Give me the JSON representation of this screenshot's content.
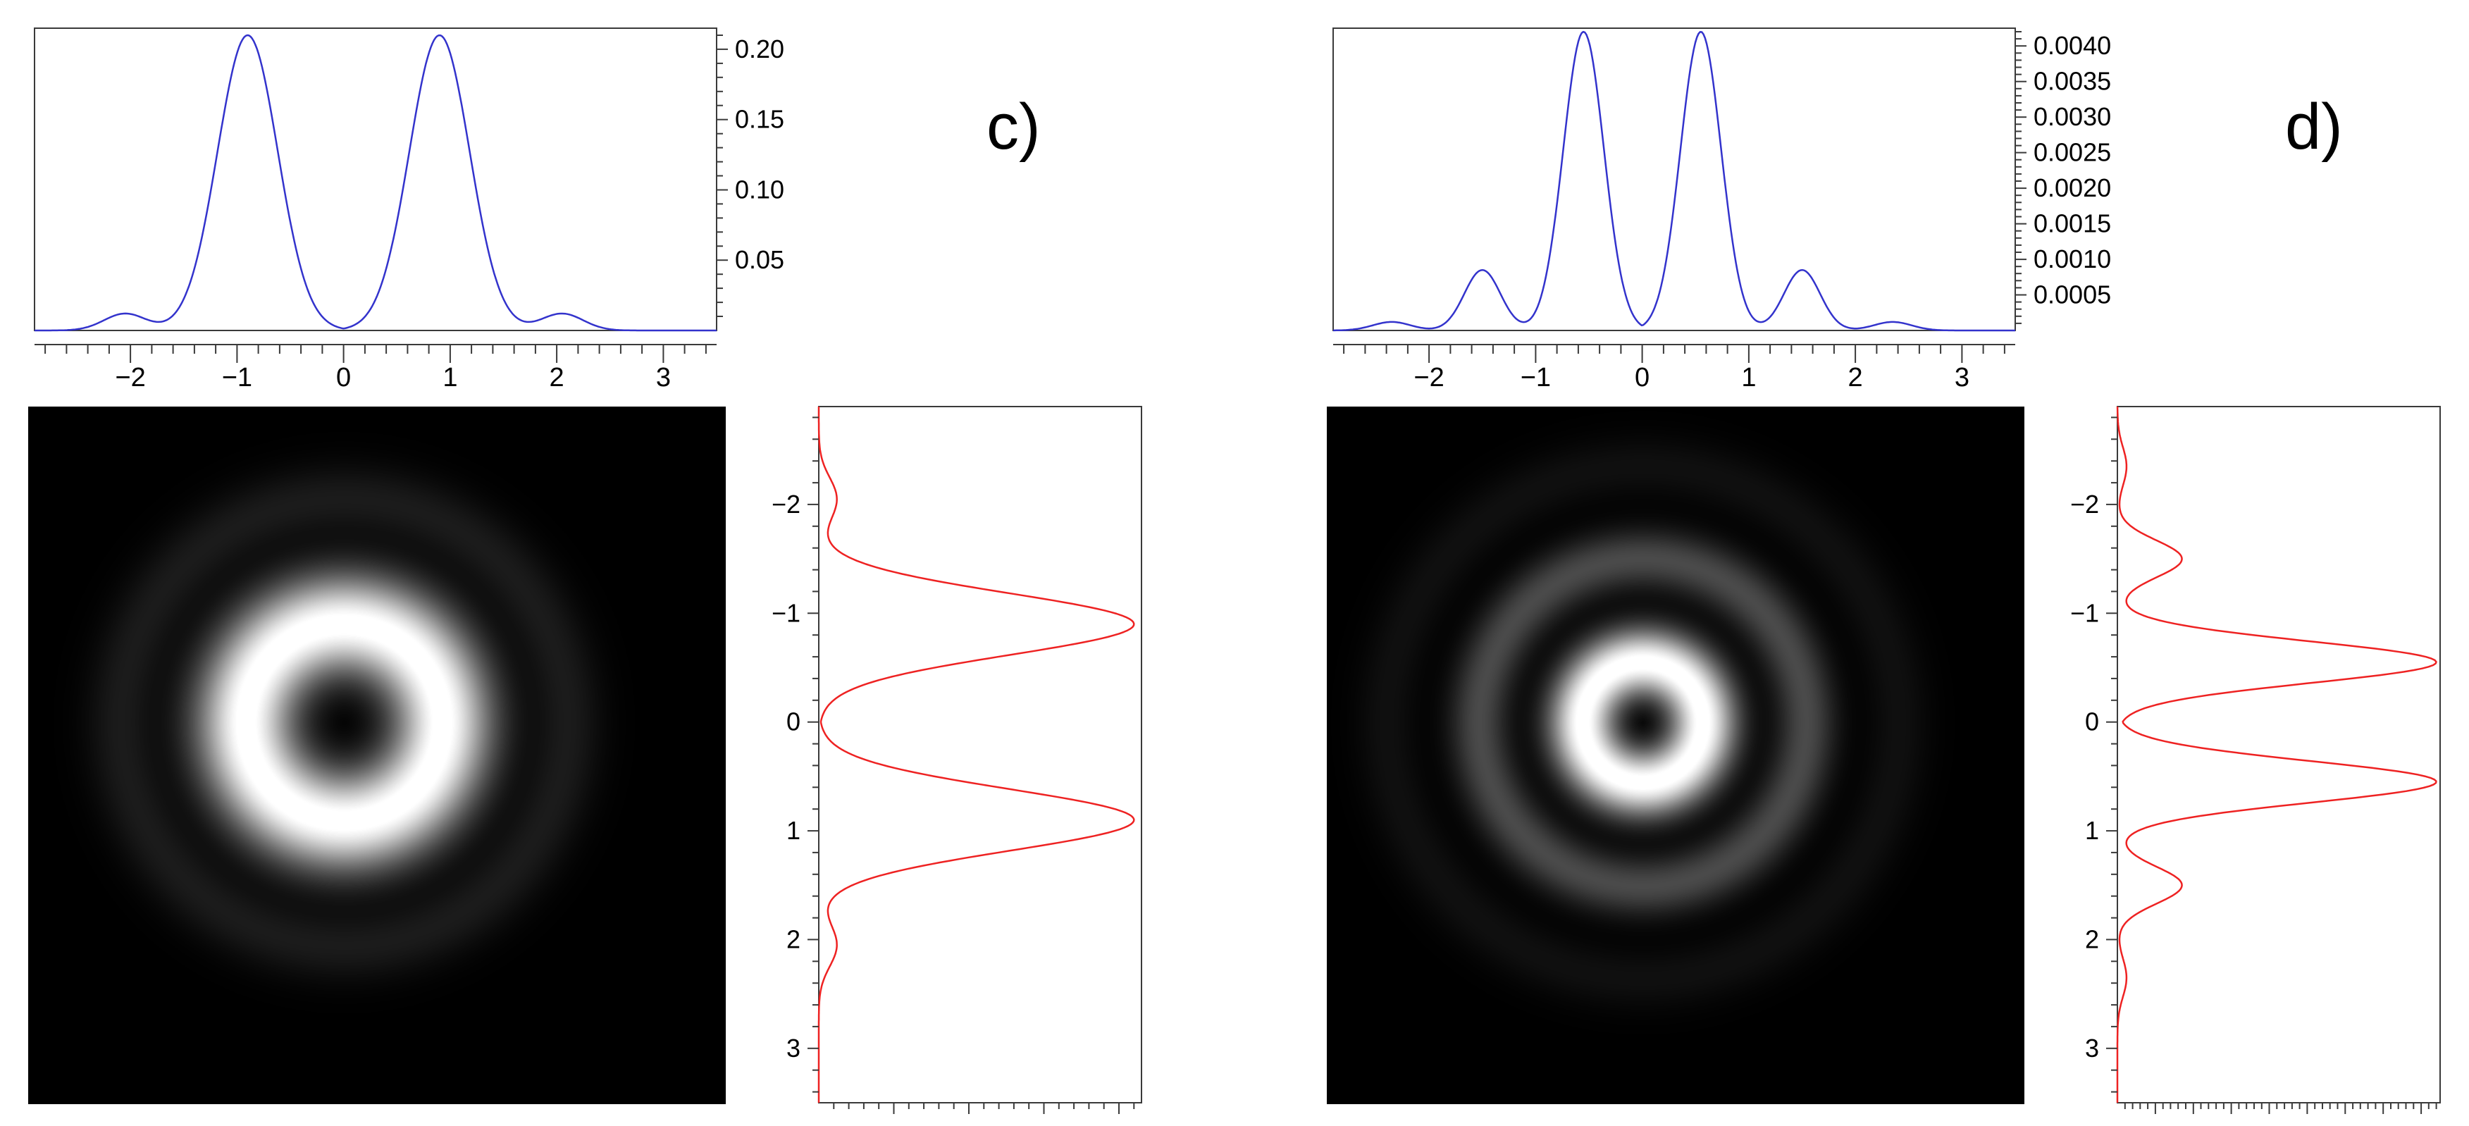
{
  "figure": {
    "background": "#ffffff",
    "frame_color": "#3a3a3a",
    "tick_label_color": "#000000",
    "panels": [
      {
        "id": "c",
        "label": "c)"
      },
      {
        "id": "d",
        "label": "d)"
      }
    ]
  },
  "chart_data": [
    {
      "id": "c-top-profile",
      "panel": "c",
      "type": "line",
      "orientation": "horizontal",
      "color": "#3333cc",
      "x_range": [
        -2.9,
        3.5
      ],
      "x_ticks": [
        -2,
        -1,
        0,
        1,
        2,
        3
      ],
      "x_tick_labels": [
        "−2",
        "−1",
        "0",
        "1",
        "2",
        "3"
      ],
      "x_minor_step": 0.2,
      "v_max": 0.215,
      "v_ticks": [
        0.05,
        0.1,
        0.15,
        0.2
      ],
      "v_tick_labels": [
        "0.05",
        "0.10",
        "0.15",
        "0.20"
      ],
      "v_minor_step": 0.01,
      "profile_components": [
        {
          "center": 0.9,
          "peak": 0.21,
          "sigma": 0.4
        },
        {
          "center": 2.05,
          "peak": 0.012,
          "sigma": 0.28
        }
      ],
      "key_points": [
        {
          "x": -0.9,
          "value": 0.21
        },
        {
          "x": 0.9,
          "value": 0.21
        },
        {
          "x": 0,
          "value": 0.001
        },
        {
          "x": -2.05,
          "value": 0.012
        },
        {
          "x": 2.05,
          "value": 0.012
        },
        {
          "x": -1.75,
          "value": 0.002
        },
        {
          "x": 1.75,
          "value": 0.002
        }
      ]
    },
    {
      "id": "c-beam-image",
      "panel": "c",
      "type": "heatmap",
      "colormap": "grayscale",
      "x_range": [
        -2.9,
        3.5
      ],
      "y_range": [
        -2.9,
        3.5
      ],
      "normalize_to": 0.21,
      "brightness": 1.05,
      "gamma": 0.8,
      "center_intensity": 0,
      "rings": [
        {
          "radius": 0.9,
          "relative_intensity": 1.0
        },
        {
          "radius": 2.05,
          "relative_intensity": 0.057
        }
      ],
      "profile_components": [
        {
          "center": 0.9,
          "peak": 0.21,
          "sigma": 0.4
        },
        {
          "center": 2.05,
          "peak": 0.012,
          "sigma": 0.28
        }
      ]
    },
    {
      "id": "c-side-profile",
      "panel": "c",
      "type": "line",
      "orientation": "vertical",
      "color": "#ee2222",
      "y_range": [
        -2.9,
        3.5
      ],
      "y_ticks": [
        -2,
        -1,
        0,
        1,
        2,
        3
      ],
      "y_tick_labels": [
        "−2",
        "−1",
        "0",
        "1",
        "2",
        "3"
      ],
      "y_minor_step": 0.2,
      "v_max": 0.215,
      "v_ticks": [
        0.05,
        0.1,
        0.15,
        0.2
      ],
      "v_minor_step": 0.01,
      "profile_components": [
        {
          "center": 0.9,
          "peak": 0.21,
          "sigma": 0.4
        },
        {
          "center": 2.05,
          "peak": 0.012,
          "sigma": 0.28
        }
      ],
      "key_points": [
        {
          "y": -0.9,
          "value": 0.21
        },
        {
          "y": 0.9,
          "value": 0.21
        },
        {
          "y": 0,
          "value": 0.001
        },
        {
          "y": -2.05,
          "value": 0.012
        },
        {
          "y": 2.05,
          "value": 0.012
        }
      ]
    },
    {
      "id": "d-top-profile",
      "panel": "d",
      "type": "line",
      "orientation": "horizontal",
      "color": "#3333cc",
      "x_range": [
        -2.9,
        3.5
      ],
      "x_ticks": [
        -2,
        -1,
        0,
        1,
        2,
        3
      ],
      "x_tick_labels": [
        "−2",
        "−1",
        "0",
        "1",
        "2",
        "3"
      ],
      "x_minor_step": 0.2,
      "v_max": 0.00425,
      "v_ticks": [
        0.0005,
        0.001,
        0.0015,
        0.002,
        0.0025,
        0.003,
        0.0035,
        0.004
      ],
      "v_tick_labels": [
        "0.0005",
        "0.0010",
        "0.0015",
        "0.0020",
        "0.0025",
        "0.0030",
        "0.0035",
        "0.0040"
      ],
      "v_minor_step": 0.0001,
      "profile_components": [
        {
          "center": 0.55,
          "peak": 0.0042,
          "sigma": 0.27
        },
        {
          "center": 1.5,
          "peak": 0.00085,
          "sigma": 0.24
        },
        {
          "center": 2.35,
          "peak": 0.00012,
          "sigma": 0.25
        }
      ],
      "key_points": [
        {
          "x": -0.55,
          "value": 0.0042
        },
        {
          "x": 0.55,
          "value": 0.0042
        },
        {
          "x": 0,
          "value": 5e-05
        },
        {
          "x": -1.5,
          "value": 0.00085
        },
        {
          "x": 1.5,
          "value": 0.00085
        },
        {
          "x": -2.35,
          "value": 0.00012
        },
        {
          "x": 2.35,
          "value": 0.00012
        }
      ]
    },
    {
      "id": "d-beam-image",
      "panel": "d",
      "type": "heatmap",
      "colormap": "grayscale",
      "x_range": [
        -2.9,
        3.5
      ],
      "y_range": [
        -2.9,
        3.5
      ],
      "normalize_to": 0.0042,
      "brightness": 1.05,
      "gamma": 0.8,
      "center_intensity": 0,
      "rings": [
        {
          "radius": 0.55,
          "relative_intensity": 1.0
        },
        {
          "radius": 1.5,
          "relative_intensity": 0.2
        },
        {
          "radius": 2.35,
          "relative_intensity": 0.03
        }
      ],
      "profile_components": [
        {
          "center": 0.55,
          "peak": 0.0042,
          "sigma": 0.27
        },
        {
          "center": 1.5,
          "peak": 0.00085,
          "sigma": 0.24
        },
        {
          "center": 2.35,
          "peak": 0.00012,
          "sigma": 0.25
        }
      ]
    },
    {
      "id": "d-side-profile",
      "panel": "d",
      "type": "line",
      "orientation": "vertical",
      "color": "#ee2222",
      "y_range": [
        -2.9,
        3.5
      ],
      "y_ticks": [
        -2,
        -1,
        0,
        1,
        2,
        3
      ],
      "y_tick_labels": [
        "−2",
        "−1",
        "0",
        "1",
        "2",
        "3"
      ],
      "y_minor_step": 0.2,
      "v_max": 0.00425,
      "v_ticks": [
        0.0005,
        0.001,
        0.0015,
        0.002,
        0.0025,
        0.003,
        0.0035,
        0.004
      ],
      "v_minor_step": 0.0001,
      "profile_components": [
        {
          "center": 0.55,
          "peak": 0.0042,
          "sigma": 0.27
        },
        {
          "center": 1.5,
          "peak": 0.00085,
          "sigma": 0.24
        },
        {
          "center": 2.35,
          "peak": 0.00012,
          "sigma": 0.25
        }
      ],
      "key_points": [
        {
          "y": -0.55,
          "value": 0.0042
        },
        {
          "y": 0.55,
          "value": 0.0042
        },
        {
          "y": 0,
          "value": 5e-05
        },
        {
          "y": -1.5,
          "value": 0.00085
        },
        {
          "y": 1.5,
          "value": 0.00085
        }
      ]
    }
  ]
}
